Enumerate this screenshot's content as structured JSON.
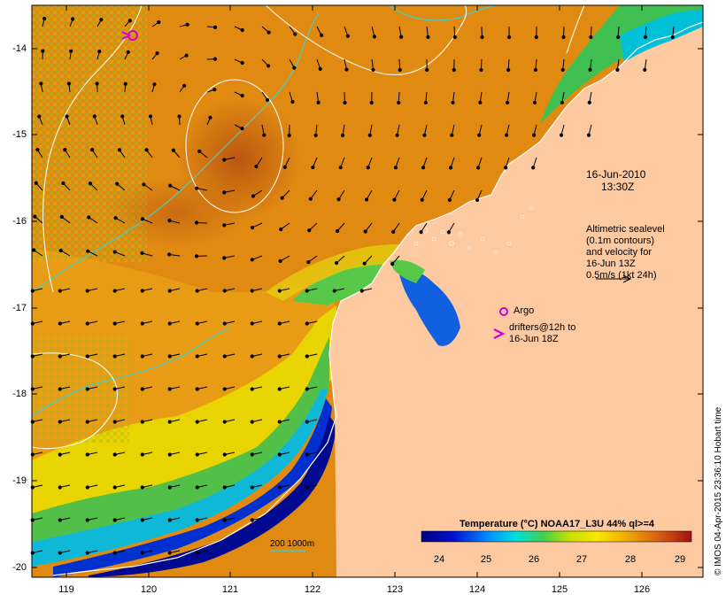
{
  "map": {
    "date_label": "16-Jun-2010",
    "time_label": "13:30Z",
    "y_ticks": [
      "-14",
      "-15",
      "-16",
      "-17",
      "-18",
      "-19",
      "-20"
    ],
    "x_ticks": [
      "119",
      "120",
      "121",
      "122",
      "123",
      "124",
      "125",
      "126"
    ],
    "legend": {
      "altimetry_line1": "Altimetric sealevel",
      "altimetry_line2": "(0.1m contours)",
      "altimetry_line3": "and velocity for",
      "altimetry_line4": "16-Jun 13Z",
      "altimetry_line5": "0.5m/s (1kt 24h)",
      "argo_label": "Argo",
      "drifter_line1": "drifters@12h to",
      "drifter_line2": "16-Jun 18Z"
    },
    "colorbar": {
      "title": "Temperature (°C) NOAA17_L3U 44% ql>=4",
      "ticks": [
        "24",
        "25",
        "26",
        "27",
        "28",
        "29"
      ]
    },
    "bathymetry_label": "200  1000m",
    "credit": "© IMOS 04-Apr-2015 23:36:10 Hobart time",
    "colors": {
      "land": "#fcc9a0",
      "warm": "#e08a10",
      "hot": "#c2580f",
      "yellow": "#f0d400",
      "green": "#5cc84c",
      "cyan": "#00c8d0",
      "blue": "#0028c8",
      "navy": "#000090",
      "argo_marker": "#d000d0",
      "contour_bathy": "#40d0c8",
      "contour_sealevel": "#ffffff"
    }
  }
}
